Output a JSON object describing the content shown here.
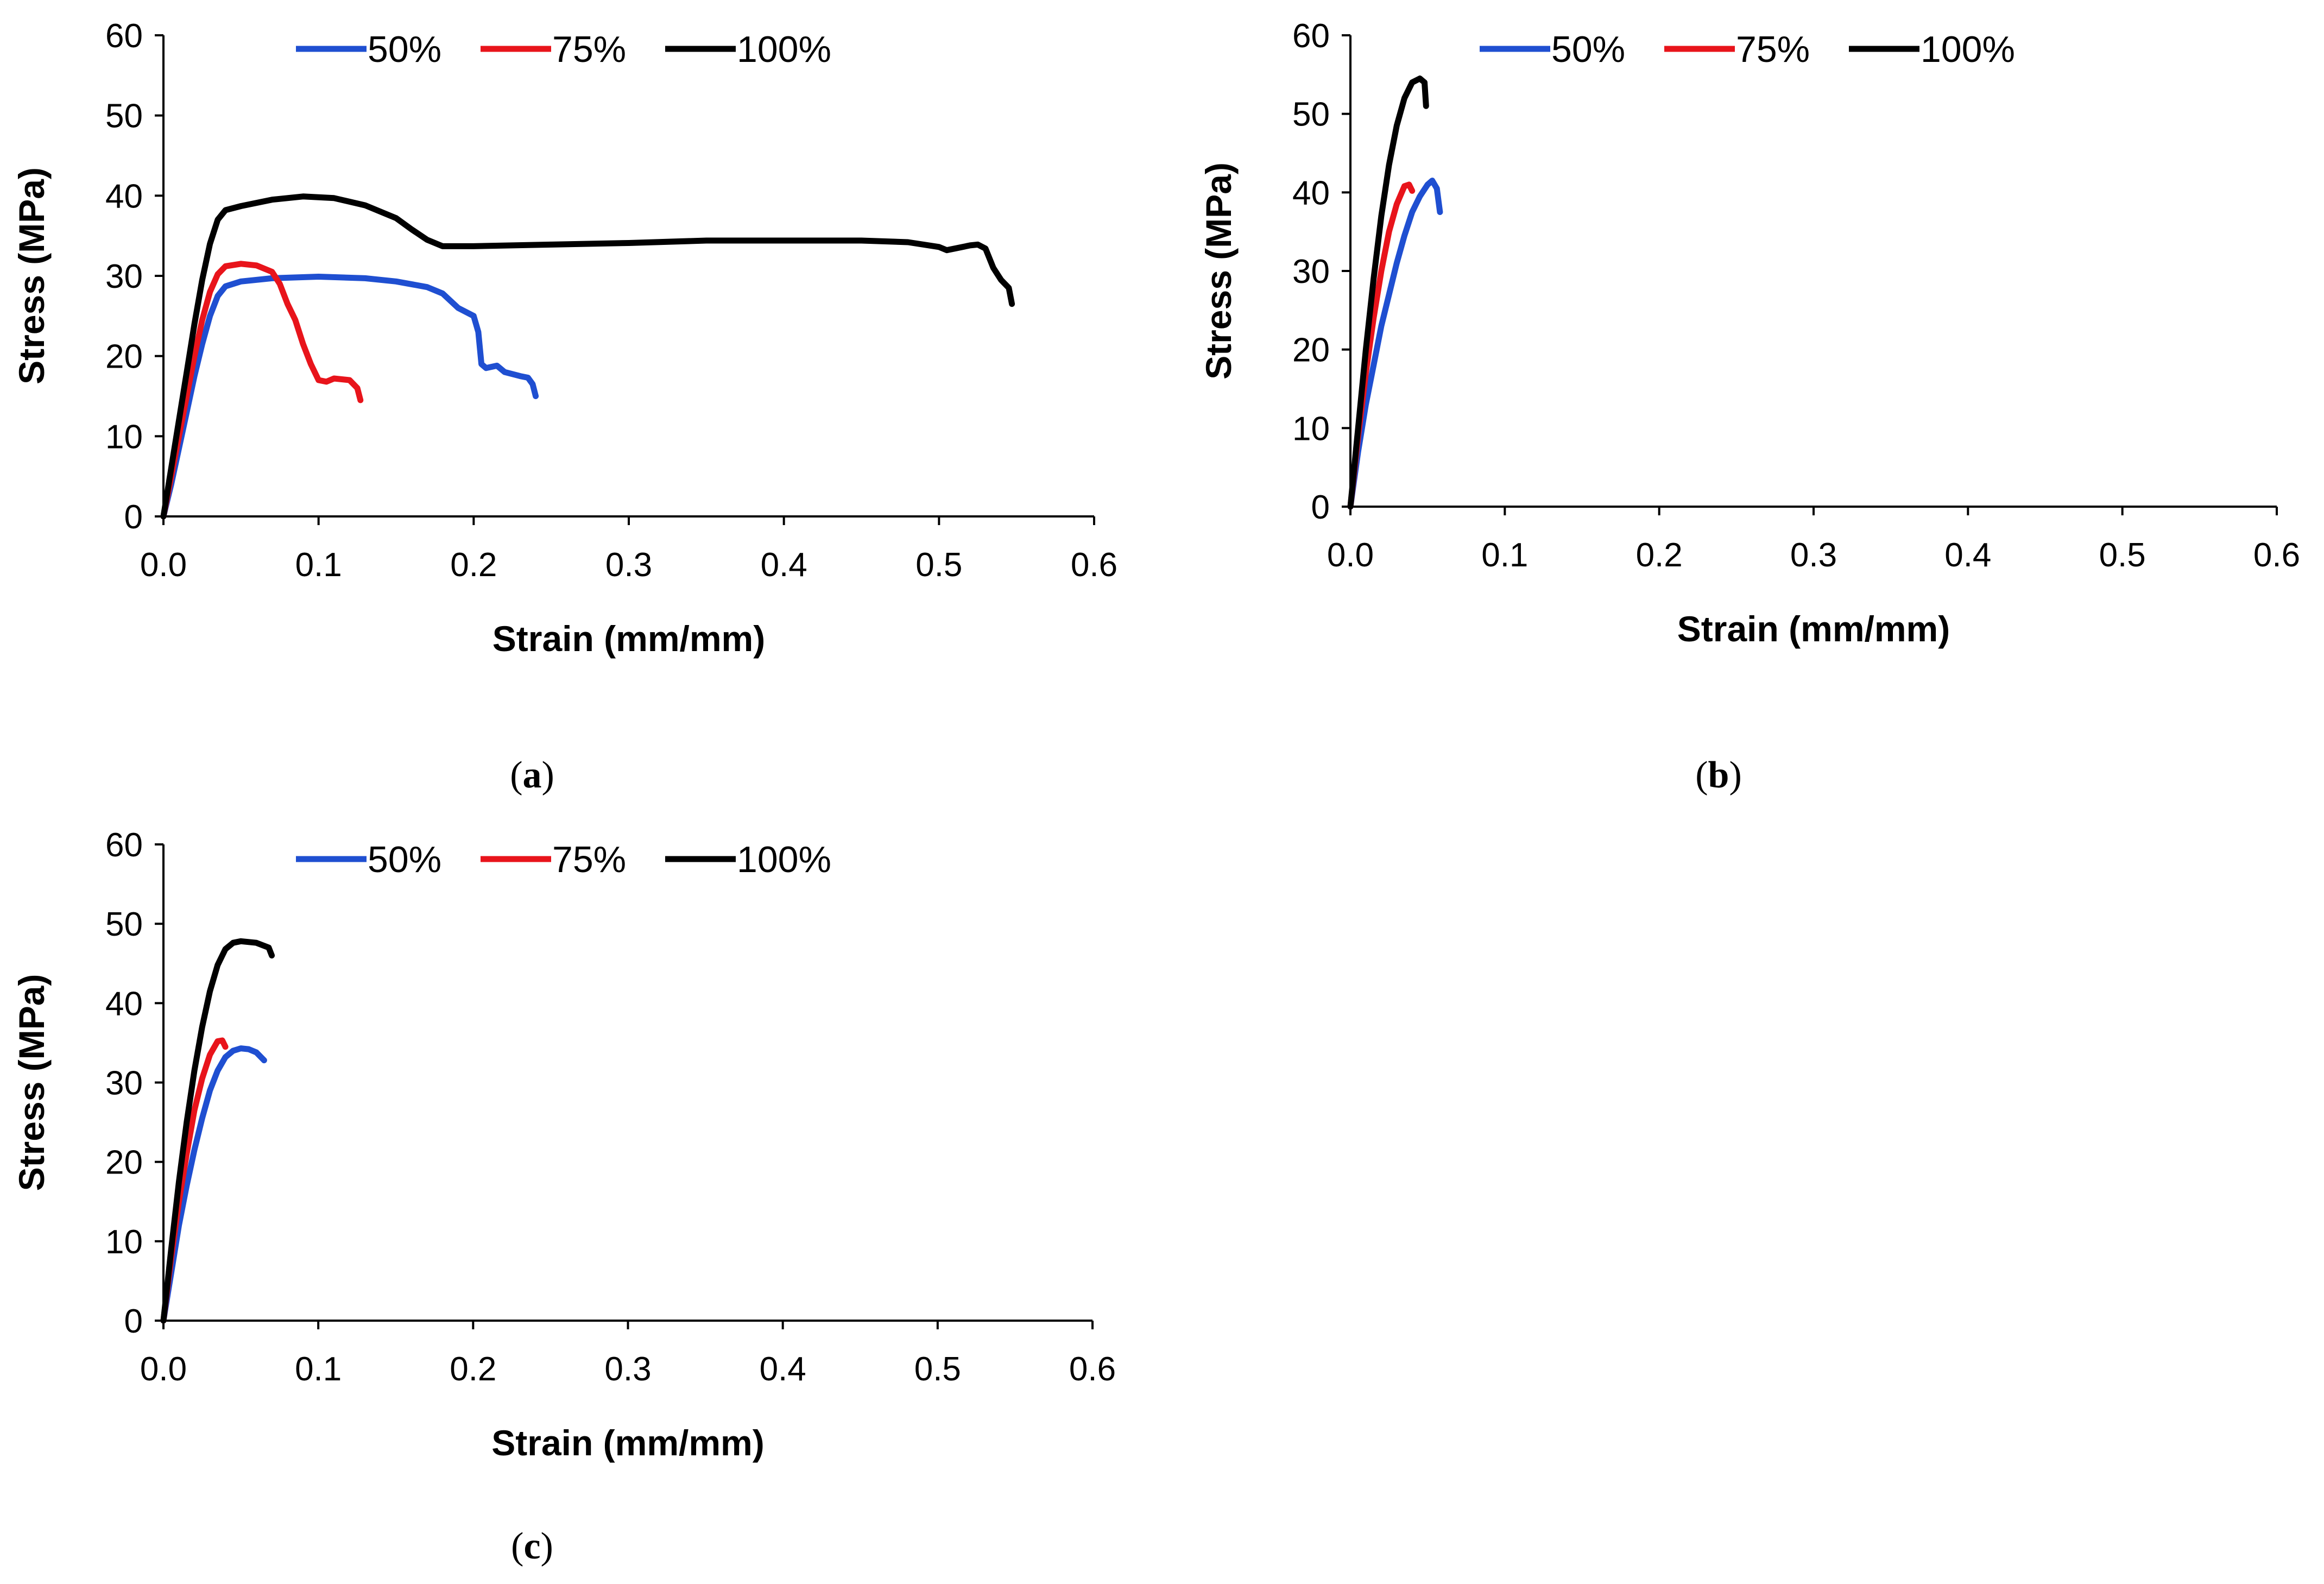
{
  "chart_data": [
    {
      "type": "line",
      "panel": "a",
      "caption": "a",
      "xlabel": "Strain (mm/mm)",
      "ylabel": "Stress (MPa)",
      "xlim": [
        0,
        0.6
      ],
      "ylim": [
        0,
        60
      ],
      "xticks": [
        "0.0",
        "0.1",
        "0.2",
        "0.3",
        "0.4",
        "0.5",
        "0.6"
      ],
      "yticks": [
        "0",
        "10",
        "20",
        "30",
        "40",
        "50",
        "60"
      ],
      "grid": false,
      "legend_position": "top",
      "series": [
        {
          "name": "50%",
          "color": "#1f4fd1",
          "points": [
            [
              0,
              0
            ],
            [
              0.005,
              4
            ],
            [
              0.01,
              8.5
            ],
            [
              0.015,
              13
            ],
            [
              0.02,
              17.5
            ],
            [
              0.025,
              21.5
            ],
            [
              0.03,
              25
            ],
            [
              0.035,
              27.5
            ],
            [
              0.04,
              28.7
            ],
            [
              0.05,
              29.3
            ],
            [
              0.07,
              29.7
            ],
            [
              0.1,
              29.9
            ],
            [
              0.13,
              29.7
            ],
            [
              0.15,
              29.3
            ],
            [
              0.17,
              28.6
            ],
            [
              0.18,
              27.8
            ],
            [
              0.19,
              26
            ],
            [
              0.2,
              25
            ],
            [
              0.203,
              23
            ],
            [
              0.205,
              19
            ],
            [
              0.208,
              18.5
            ],
            [
              0.215,
              18.8
            ],
            [
              0.22,
              18
            ],
            [
              0.23,
              17.5
            ],
            [
              0.235,
              17.3
            ],
            [
              0.238,
              16.5
            ],
            [
              0.24,
              15
            ]
          ]
        },
        {
          "name": "75%",
          "color": "#e8141b",
          "points": [
            [
              0,
              0
            ],
            [
              0.005,
              5
            ],
            [
              0.01,
              10
            ],
            [
              0.015,
              15
            ],
            [
              0.02,
              20
            ],
            [
              0.025,
              24.5
            ],
            [
              0.03,
              28
            ],
            [
              0.035,
              30.2
            ],
            [
              0.04,
              31.2
            ],
            [
              0.05,
              31.5
            ],
            [
              0.06,
              31.3
            ],
            [
              0.07,
              30.5
            ],
            [
              0.075,
              29
            ],
            [
              0.08,
              26.5
            ],
            [
              0.085,
              24.5
            ],
            [
              0.09,
              21.5
            ],
            [
              0.095,
              19
            ],
            [
              0.1,
              17
            ],
            [
              0.105,
              16.8
            ],
            [
              0.11,
              17.2
            ],
            [
              0.12,
              17
            ],
            [
              0.125,
              16
            ],
            [
              0.127,
              14.5
            ]
          ]
        },
        {
          "name": "100%",
          "color": "#000000",
          "points": [
            [
              0,
              0
            ],
            [
              0.005,
              6
            ],
            [
              0.01,
              12
            ],
            [
              0.015,
              18
            ],
            [
              0.02,
              24
            ],
            [
              0.025,
              29.5
            ],
            [
              0.03,
              34
            ],
            [
              0.035,
              37
            ],
            [
              0.04,
              38.2
            ],
            [
              0.05,
              38.7
            ],
            [
              0.07,
              39.5
            ],
            [
              0.09,
              39.9
            ],
            [
              0.11,
              39.7
            ],
            [
              0.13,
              38.8
            ],
            [
              0.15,
              37.2
            ],
            [
              0.16,
              35.8
            ],
            [
              0.17,
              34.5
            ],
            [
              0.18,
              33.7
            ],
            [
              0.2,
              33.7
            ],
            [
              0.25,
              33.9
            ],
            [
              0.3,
              34.1
            ],
            [
              0.35,
              34.4
            ],
            [
              0.4,
              34.4
            ],
            [
              0.45,
              34.4
            ],
            [
              0.48,
              34.2
            ],
            [
              0.5,
              33.6
            ],
            [
              0.505,
              33.2
            ],
            [
              0.51,
              33.4
            ],
            [
              0.52,
              33.8
            ],
            [
              0.525,
              33.9
            ],
            [
              0.53,
              33.4
            ],
            [
              0.535,
              31
            ],
            [
              0.54,
              29.5
            ],
            [
              0.545,
              28.5
            ],
            [
              0.547,
              26.5
            ]
          ]
        }
      ]
    },
    {
      "type": "line",
      "panel": "b",
      "caption": "b",
      "xlabel": "Strain (mm/mm)",
      "ylabel": "Stress (MPa)",
      "xlim": [
        0,
        0.6
      ],
      "ylim": [
        0,
        60
      ],
      "xticks": [
        "0.0",
        "0.1",
        "0.2",
        "0.3",
        "0.4",
        "0.5",
        "0.6"
      ],
      "yticks": [
        "0",
        "10",
        "20",
        "30",
        "40",
        "50",
        "60"
      ],
      "grid": false,
      "legend_position": "top",
      "series": [
        {
          "name": "50%",
          "color": "#1f4fd1",
          "points": [
            [
              0,
              0
            ],
            [
              0.005,
              7
            ],
            [
              0.01,
              13
            ],
            [
              0.015,
              18
            ],
            [
              0.02,
              23
            ],
            [
              0.025,
              27
            ],
            [
              0.03,
              31
            ],
            [
              0.035,
              34.5
            ],
            [
              0.04,
              37.5
            ],
            [
              0.045,
              39.5
            ],
            [
              0.05,
              41
            ],
            [
              0.053,
              41.5
            ],
            [
              0.056,
              40.5
            ],
            [
              0.058,
              37.5
            ]
          ]
        },
        {
          "name": "75%",
          "color": "#e8141b",
          "points": [
            [
              0,
              0
            ],
            [
              0.005,
              9
            ],
            [
              0.01,
              17
            ],
            [
              0.015,
              24
            ],
            [
              0.02,
              30
            ],
            [
              0.025,
              35
            ],
            [
              0.03,
              38.5
            ],
            [
              0.035,
              40.8
            ],
            [
              0.038,
              41
            ],
            [
              0.04,
              40.2
            ]
          ]
        },
        {
          "name": "100%",
          "color": "#000000",
          "points": [
            [
              0,
              0
            ],
            [
              0.005,
              10
            ],
            [
              0.01,
              20
            ],
            [
              0.015,
              29
            ],
            [
              0.02,
              37
            ],
            [
              0.025,
              43.5
            ],
            [
              0.03,
              48.5
            ],
            [
              0.035,
              52
            ],
            [
              0.04,
              54
            ],
            [
              0.045,
              54.5
            ],
            [
              0.048,
              54
            ],
            [
              0.049,
              51
            ]
          ]
        }
      ]
    },
    {
      "type": "line",
      "panel": "c",
      "caption": "c",
      "xlabel": "Strain (mm/mm)",
      "ylabel": "Stress (MPa)",
      "xlim": [
        0,
        0.6
      ],
      "ylim": [
        0,
        60
      ],
      "xticks": [
        "0.0",
        "0.1",
        "0.2",
        "0.3",
        "0.4",
        "0.5",
        "0.6"
      ],
      "yticks": [
        "0",
        "10",
        "20",
        "30",
        "40",
        "50",
        "60"
      ],
      "grid": false,
      "legend_position": "top",
      "series": [
        {
          "name": "50%",
          "color": "#1f4fd1",
          "points": [
            [
              0,
              0
            ],
            [
              0.005,
              6
            ],
            [
              0.01,
              12
            ],
            [
              0.015,
              17
            ],
            [
              0.02,
              21.5
            ],
            [
              0.025,
              25.5
            ],
            [
              0.03,
              29
            ],
            [
              0.035,
              31.5
            ],
            [
              0.04,
              33.2
            ],
            [
              0.045,
              34
            ],
            [
              0.05,
              34.3
            ],
            [
              0.055,
              34.2
            ],
            [
              0.06,
              33.8
            ],
            [
              0.065,
              32.8
            ]
          ]
        },
        {
          "name": "75%",
          "color": "#e8141b",
          "points": [
            [
              0,
              0
            ],
            [
              0.005,
              8
            ],
            [
              0.01,
              15
            ],
            [
              0.015,
              21
            ],
            [
              0.02,
              26.5
            ],
            [
              0.025,
              30.5
            ],
            [
              0.03,
              33.5
            ],
            [
              0.035,
              35.2
            ],
            [
              0.038,
              35.3
            ],
            [
              0.04,
              34.5
            ]
          ]
        },
        {
          "name": "100%",
          "color": "#000000",
          "points": [
            [
              0,
              0
            ],
            [
              0.005,
              9
            ],
            [
              0.01,
              17.5
            ],
            [
              0.015,
              25
            ],
            [
              0.02,
              31.5
            ],
            [
              0.025,
              37
            ],
            [
              0.03,
              41.5
            ],
            [
              0.035,
              44.8
            ],
            [
              0.04,
              46.8
            ],
            [
              0.045,
              47.6
            ],
            [
              0.05,
              47.8
            ],
            [
              0.06,
              47.6
            ],
            [
              0.068,
              47
            ],
            [
              0.07,
              46
            ]
          ]
        }
      ]
    }
  ]
}
